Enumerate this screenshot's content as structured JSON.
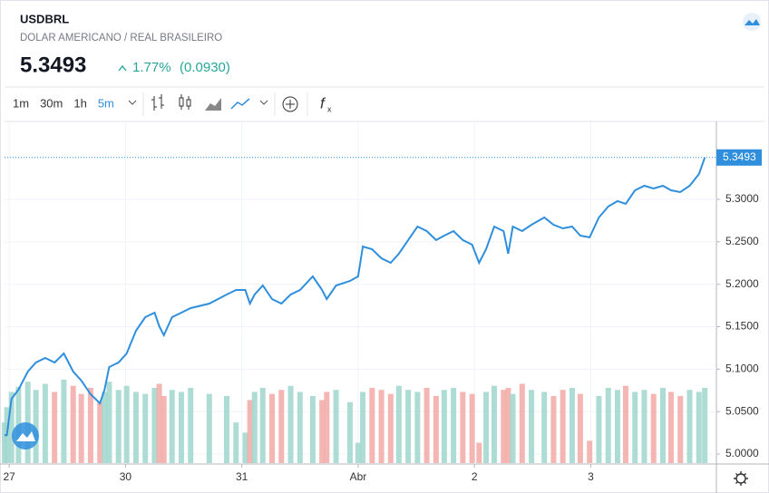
{
  "chart_data": {
    "type": "line",
    "title": "USDBRL",
    "subtitle": "DOLAR AMERICANO / REAL BRASILEIRO",
    "change_percent": "1.77%",
    "change_value": "(0.0930)",
    "intervals": [
      "1m",
      "30m",
      "1h",
      "5m"
    ],
    "active_interval": 3,
    "x": [
      -0.04,
      -0.02,
      0.02,
      0.08,
      0.16,
      0.23,
      0.31,
      0.39,
      0.47,
      0.55,
      0.62,
      0.7,
      0.78,
      0.82,
      0.86,
      0.94,
      1.01,
      1.09,
      1.17,
      1.25,
      1.29,
      1.33,
      1.4,
      1.48,
      1.56,
      1.72,
      1.87,
      1.95,
      2.03,
      2.07,
      2.11,
      2.18,
      2.26,
      2.34,
      2.42,
      2.5,
      2.61,
      2.69,
      2.73,
      2.81,
      2.93,
      3.0,
      3.04,
      3.12,
      3.2,
      3.28,
      3.35,
      3.43,
      3.51,
      3.59,
      3.67,
      3.74,
      3.82,
      3.9,
      3.98,
      4.04,
      4.1,
      4.17,
      4.25,
      4.29,
      4.33,
      4.41,
      4.49,
      4.6,
      4.68,
      4.76,
      4.84,
      4.91,
      4.99,
      5.07,
      5.15,
      5.23,
      5.3,
      5.38,
      5.46,
      5.54,
      5.62,
      5.69,
      5.77,
      5.85,
      5.93,
      5.98
    ],
    "series": [
      {
        "color": "#2f8fdd",
        "values": [
          5.0224,
          5.0224,
          5.0651,
          5.0758,
          5.0972,
          5.1078,
          5.1132,
          5.1078,
          5.1185,
          5.0972,
          5.0865,
          5.0705,
          5.0598,
          5.0758,
          5.1025,
          5.1078,
          5.1185,
          5.1452,
          5.1612,
          5.1665,
          5.1505,
          5.1399,
          5.1612,
          5.1665,
          5.1719,
          5.1772,
          5.1879,
          5.1932,
          5.1932,
          5.1772,
          5.1879,
          5.1986,
          5.1826,
          5.1772,
          5.1879,
          5.1932,
          5.2092,
          5.1932,
          5.1826,
          5.1986,
          5.2039,
          5.2092,
          5.2445,
          5.2413,
          5.2306,
          5.2253,
          5.2359,
          5.252,
          5.268,
          5.2626,
          5.252,
          5.2573,
          5.2626,
          5.252,
          5.2466,
          5.2253,
          5.2413,
          5.268,
          5.2626,
          5.2359,
          5.268,
          5.2626,
          5.2701,
          5.2786,
          5.2701,
          5.2658,
          5.268,
          5.2573,
          5.2552,
          5.2786,
          5.2915,
          5.2979,
          5.2947,
          5.3107,
          5.316,
          5.3128,
          5.316,
          5.3107,
          5.3085,
          5.316,
          5.3299,
          5.3493
        ]
      }
    ],
    "volume": {
      "up_color": "#9fd6cc",
      "down_color": "#f2a9a6",
      "values": [
        40,
        55,
        70,
        75,
        80,
        72,
        78,
        70,
        82,
        76,
        68,
        74,
        60,
        70,
        80,
        72,
        76,
        70,
        68,
        74,
        78,
        66,
        72,
        70,
        74,
        68,
        66,
        40,
        30,
        62,
        70,
        74,
        68,
        72,
        76,
        70,
        66,
        62,
        70,
        72,
        60,
        20,
        70,
        74,
        72,
        68,
        76,
        72,
        70,
        74,
        66,
        72,
        74,
        70,
        68,
        20,
        70,
        76,
        72,
        74,
        68,
        78,
        72,
        70,
        66,
        72,
        74,
        68,
        22,
        66,
        74,
        72,
        76,
        70,
        72,
        68,
        74,
        70,
        66,
        72,
        70,
        74
      ]
    },
    "xlim": [
      -0.04,
      6.08
    ],
    "ylim": [
      4.9883,
      5.3907
    ],
    "xticks": [
      {
        "value": 0,
        "label": "27"
      },
      {
        "value": 1,
        "label": "30"
      },
      {
        "value": 2,
        "label": "31"
      },
      {
        "value": 3,
        "label": "Abr"
      },
      {
        "value": 4,
        "label": "2"
      },
      {
        "value": 5,
        "label": "3"
      }
    ],
    "yticks": [
      {
        "value": 5,
        "label": "5.0000"
      },
      {
        "value": 5.05,
        "label": "5.0500"
      },
      {
        "value": 5.1,
        "label": "5.1000"
      },
      {
        "value": 5.15,
        "label": "5.1500"
      },
      {
        "value": 5.2,
        "label": "5.2000"
      },
      {
        "value": 5.25,
        "label": "5.2500"
      },
      {
        "value": 5.3,
        "label": "5.3000"
      }
    ],
    "grid": true
  }
}
